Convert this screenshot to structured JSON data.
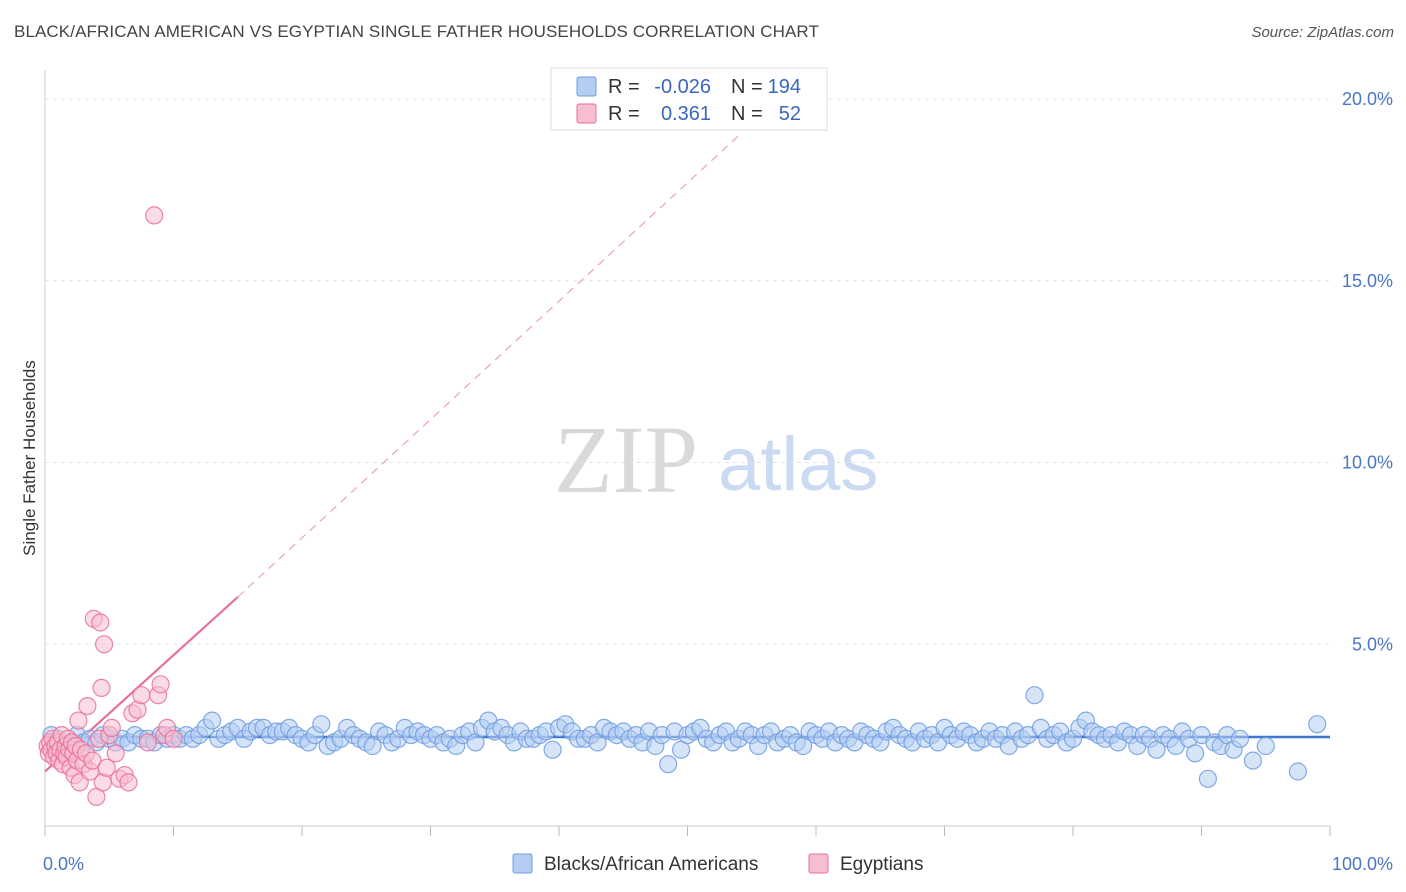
{
  "title": "BLACK/AFRICAN AMERICAN VS EGYPTIAN SINGLE FATHER HOUSEHOLDS CORRELATION CHART",
  "source": "Source: ZipAtlas.com",
  "watermark": {
    "zip": "ZIP",
    "atlas": "atlas"
  },
  "chart_data": {
    "type": "scatter",
    "title": "BLACK/AFRICAN AMERICAN VS EGYPTIAN SINGLE FATHER HOUSEHOLDS CORRELATION CHART",
    "xlabel": "",
    "ylabel": "Single Father Households",
    "xlim": [
      0,
      100
    ],
    "ylim": [
      0,
      20.8
    ],
    "x_tick_labels": [
      "0.0%",
      "100.0%"
    ],
    "y_ticks": [
      5,
      10,
      15,
      20
    ],
    "y_tick_labels": [
      "5.0%",
      "10.0%",
      "15.0%",
      "20.0%"
    ],
    "grid": true,
    "legend_position": "top-center",
    "colors": {
      "blue": "#6f9ce0",
      "blue_fill": "#b4cef3",
      "pink": "#e8709a",
      "pink_fill": "#f7bdd0",
      "axis_text": "#4a76c5"
    },
    "stats": [
      {
        "r_label": "R =",
        "r_value": "-0.026",
        "n_label": "N =",
        "n_value": "194"
      },
      {
        "r_label": "R =",
        "r_value": "0.361",
        "n_label": "N =",
        "n_value": "52"
      }
    ],
    "series": [
      {
        "name": "Blacks/African Americans",
        "color": "#6f9ce0",
        "trend": {
          "x": [
            0,
            100
          ],
          "y": [
            2.45,
            2.45
          ],
          "style": "solid"
        },
        "points": [
          [
            0.5,
            2.5
          ],
          [
            1,
            2.4
          ],
          [
            1.5,
            2.2
          ],
          [
            2,
            2.3
          ],
          [
            2.5,
            2.5
          ],
          [
            3,
            2.3
          ],
          [
            3.5,
            2.4
          ],
          [
            4,
            2.3
          ],
          [
            4.5,
            2.5
          ],
          [
            5,
            2.4
          ],
          [
            5.5,
            2.3
          ],
          [
            6,
            2.4
          ],
          [
            6.5,
            2.3
          ],
          [
            7,
            2.5
          ],
          [
            7.5,
            2.4
          ],
          [
            8,
            2.4
          ],
          [
            8.5,
            2.3
          ],
          [
            9,
            2.5
          ],
          [
            9.5,
            2.4
          ],
          [
            10,
            2.5
          ],
          [
            10.5,
            2.4
          ],
          [
            11,
            2.5
          ],
          [
            11.5,
            2.4
          ],
          [
            12,
            2.5
          ],
          [
            12.5,
            2.7
          ],
          [
            13,
            2.9
          ],
          [
            13.5,
            2.4
          ],
          [
            14,
            2.5
          ],
          [
            14.5,
            2.6
          ],
          [
            15,
            2.7
          ],
          [
            15.5,
            2.4
          ],
          [
            16,
            2.6
          ],
          [
            16.5,
            2.7
          ],
          [
            17,
            2.7
          ],
          [
            17.5,
            2.5
          ],
          [
            18,
            2.6
          ],
          [
            18.5,
            2.6
          ],
          [
            19,
            2.7
          ],
          [
            19.5,
            2.5
          ],
          [
            20,
            2.4
          ],
          [
            20.5,
            2.3
          ],
          [
            21,
            2.5
          ],
          [
            21.5,
            2.8
          ],
          [
            22,
            2.2
          ],
          [
            22.5,
            2.3
          ],
          [
            23,
            2.4
          ],
          [
            23.5,
            2.7
          ],
          [
            24,
            2.5
          ],
          [
            24.5,
            2.4
          ],
          [
            25,
            2.3
          ],
          [
            25.5,
            2.2
          ],
          [
            26,
            2.6
          ],
          [
            26.5,
            2.5
          ],
          [
            27,
            2.3
          ],
          [
            27.5,
            2.4
          ],
          [
            28,
            2.7
          ],
          [
            28.5,
            2.5
          ],
          [
            29,
            2.6
          ],
          [
            29.5,
            2.5
          ],
          [
            30,
            2.4
          ],
          [
            30.5,
            2.5
          ],
          [
            31,
            2.3
          ],
          [
            31.5,
            2.4
          ],
          [
            32,
            2.2
          ],
          [
            32.5,
            2.5
          ],
          [
            33,
            2.6
          ],
          [
            33.5,
            2.3
          ],
          [
            34,
            2.7
          ],
          [
            34.5,
            2.9
          ],
          [
            35,
            2.6
          ],
          [
            35.5,
            2.7
          ],
          [
            36,
            2.5
          ],
          [
            36.5,
            2.3
          ],
          [
            37,
            2.6
          ],
          [
            37.5,
            2.4
          ],
          [
            38,
            2.4
          ],
          [
            38.5,
            2.5
          ],
          [
            39,
            2.6
          ],
          [
            39.5,
            2.1
          ],
          [
            40,
            2.7
          ],
          [
            40.5,
            2.8
          ],
          [
            41,
            2.6
          ],
          [
            41.5,
            2.4
          ],
          [
            42,
            2.4
          ],
          [
            42.5,
            2.5
          ],
          [
            43,
            2.3
          ],
          [
            43.5,
            2.7
          ],
          [
            44,
            2.6
          ],
          [
            44.5,
            2.5
          ],
          [
            45,
            2.6
          ],
          [
            45.5,
            2.4
          ],
          [
            46,
            2.5
          ],
          [
            46.5,
            2.3
          ],
          [
            47,
            2.6
          ],
          [
            47.5,
            2.2
          ],
          [
            48,
            2.5
          ],
          [
            48.5,
            1.7
          ],
          [
            49,
            2.6
          ],
          [
            49.5,
            2.1
          ],
          [
            50,
            2.5
          ],
          [
            50.5,
            2.6
          ],
          [
            51,
            2.7
          ],
          [
            51.5,
            2.4
          ],
          [
            52,
            2.3
          ],
          [
            52.5,
            2.5
          ],
          [
            53,
            2.6
          ],
          [
            53.5,
            2.3
          ],
          [
            54,
            2.4
          ],
          [
            54.5,
            2.6
          ],
          [
            55,
            2.5
          ],
          [
            55.5,
            2.2
          ],
          [
            56,
            2.5
          ],
          [
            56.5,
            2.6
          ],
          [
            57,
            2.3
          ],
          [
            57.5,
            2.4
          ],
          [
            58,
            2.5
          ],
          [
            58.5,
            2.3
          ],
          [
            59,
            2.2
          ],
          [
            59.5,
            2.6
          ],
          [
            60,
            2.5
          ],
          [
            60.5,
            2.4
          ],
          [
            61,
            2.6
          ],
          [
            61.5,
            2.3
          ],
          [
            62,
            2.5
          ],
          [
            62.5,
            2.4
          ],
          [
            63,
            2.3
          ],
          [
            63.5,
            2.6
          ],
          [
            64,
            2.5
          ],
          [
            64.5,
            2.4
          ],
          [
            65,
            2.3
          ],
          [
            65.5,
            2.6
          ],
          [
            66,
            2.7
          ],
          [
            66.5,
            2.5
          ],
          [
            67,
            2.4
          ],
          [
            67.5,
            2.3
          ],
          [
            68,
            2.6
          ],
          [
            68.5,
            2.4
          ],
          [
            69,
            2.5
          ],
          [
            69.5,
            2.3
          ],
          [
            70,
            2.7
          ],
          [
            70.5,
            2.5
          ],
          [
            71,
            2.4
          ],
          [
            71.5,
            2.6
          ],
          [
            72,
            2.5
          ],
          [
            72.5,
            2.3
          ],
          [
            73,
            2.4
          ],
          [
            73.5,
            2.6
          ],
          [
            74,
            2.4
          ],
          [
            74.5,
            2.5
          ],
          [
            75,
            2.2
          ],
          [
            75.5,
            2.6
          ],
          [
            76,
            2.4
          ],
          [
            76.5,
            2.5
          ],
          [
            77,
            3.6
          ],
          [
            77.5,
            2.7
          ],
          [
            78,
            2.4
          ],
          [
            78.5,
            2.5
          ],
          [
            79,
            2.6
          ],
          [
            79.5,
            2.3
          ],
          [
            80,
            2.4
          ],
          [
            80.5,
            2.7
          ],
          [
            81,
            2.9
          ],
          [
            81.5,
            2.6
          ],
          [
            82,
            2.5
          ],
          [
            82.5,
            2.4
          ],
          [
            83,
            2.5
          ],
          [
            83.5,
            2.3
          ],
          [
            84,
            2.6
          ],
          [
            84.5,
            2.5
          ],
          [
            85,
            2.2
          ],
          [
            85.5,
            2.5
          ],
          [
            86,
            2.4
          ],
          [
            86.5,
            2.1
          ],
          [
            87,
            2.5
          ],
          [
            87.5,
            2.4
          ],
          [
            88,
            2.2
          ],
          [
            88.5,
            2.6
          ],
          [
            89,
            2.4
          ],
          [
            89.5,
            2.0
          ],
          [
            90,
            2.5
          ],
          [
            90.5,
            1.3
          ],
          [
            91,
            2.3
          ],
          [
            91.5,
            2.2
          ],
          [
            92,
            2.5
          ],
          [
            92.5,
            2.1
          ],
          [
            93,
            2.4
          ],
          [
            94,
            1.8
          ],
          [
            95,
            2.2
          ],
          [
            97.5,
            1.5
          ],
          [
            99,
            2.8
          ]
        ]
      },
      {
        "name": "Egyptians",
        "color": "#e8709a",
        "trend": {
          "x": [
            0,
            15
          ],
          "y": [
            1.5,
            6.3
          ],
          "style": "solid",
          "extended": {
            "x": [
              15,
              54
            ],
            "y": [
              6.3,
              19.0
            ],
            "style": "dashed"
          }
        },
        "points": [
          [
            0.2,
            2.2
          ],
          [
            0.3,
            2.0
          ],
          [
            0.4,
            2.3
          ],
          [
            0.5,
            2.1
          ],
          [
            0.6,
            2.4
          ],
          [
            0.7,
            1.9
          ],
          [
            0.8,
            2.2
          ],
          [
            0.9,
            2.0
          ],
          [
            1.0,
            2.3
          ],
          [
            1.1,
            1.8
          ],
          [
            1.2,
            2.1
          ],
          [
            1.3,
            2.5
          ],
          [
            1.4,
            1.7
          ],
          [
            1.5,
            2.0
          ],
          [
            1.6,
            2.2
          ],
          [
            1.7,
            1.9
          ],
          [
            1.8,
            2.4
          ],
          [
            1.9,
            2.1
          ],
          [
            2.0,
            1.6
          ],
          [
            2.1,
            2.3
          ],
          [
            2.2,
            2.0
          ],
          [
            2.3,
            1.4
          ],
          [
            2.4,
            2.2
          ],
          [
            2.5,
            1.8
          ],
          [
            2.6,
            2.9
          ],
          [
            2.7,
            1.2
          ],
          [
            2.8,
            2.1
          ],
          [
            3.0,
            1.7
          ],
          [
            3.2,
            2.0
          ],
          [
            3.3,
            3.3
          ],
          [
            3.5,
            1.5
          ],
          [
            3.7,
            1.8
          ],
          [
            3.8,
            5.7
          ],
          [
            4.0,
            0.8
          ],
          [
            4.2,
            2.4
          ],
          [
            4.3,
            5.6
          ],
          [
            4.4,
            3.8
          ],
          [
            4.5,
            1.2
          ],
          [
            4.6,
            5.0
          ],
          [
            4.8,
            1.6
          ],
          [
            5.0,
            2.5
          ],
          [
            5.2,
            2.7
          ],
          [
            5.5,
            2.0
          ],
          [
            5.8,
            1.3
          ],
          [
            6.2,
            1.4
          ],
          [
            6.5,
            1.2
          ],
          [
            6.8,
            3.1
          ],
          [
            7.2,
            3.2
          ],
          [
            7.5,
            3.6
          ],
          [
            8.0,
            2.3
          ],
          [
            8.8,
            3.6
          ],
          [
            9.0,
            3.9
          ],
          [
            9.3,
            2.5
          ],
          [
            9.5,
            2.7
          ],
          [
            10.0,
            2.4
          ],
          [
            8.5,
            16.8
          ]
        ]
      }
    ]
  },
  "bottom_legend": [
    {
      "label": "Blacks/African Americans"
    },
    {
      "label": "Egyptians"
    }
  ]
}
